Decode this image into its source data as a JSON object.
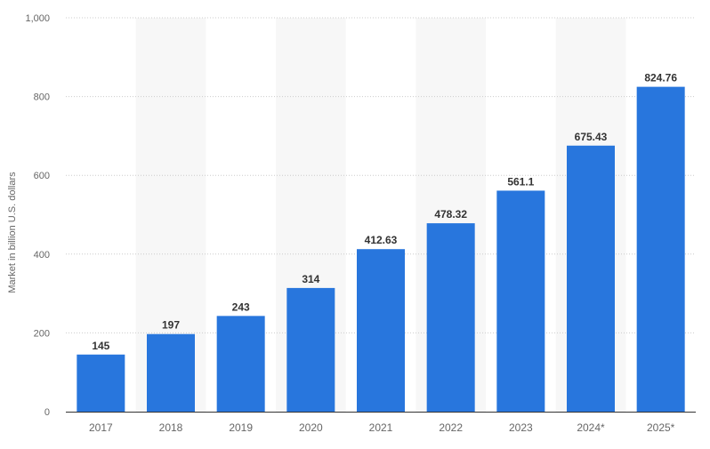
{
  "chart_data": {
    "type": "bar",
    "categories": [
      "2017",
      "2018",
      "2019",
      "2020",
      "2021",
      "2022",
      "2023",
      "2024*",
      "2025*"
    ],
    "series": [
      {
        "values": [
          145,
          197,
          243,
          314,
          412.63,
          478.32,
          561.1,
          675.43,
          824.76
        ],
        "value_labels": [
          "145",
          "197",
          "243",
          "314",
          "412.63",
          "478.32",
          "561.1",
          "675.43",
          "824.76"
        ]
      }
    ],
    "title": "",
    "xlabel": "",
    "ylabel": "Market in billion U.S. dollars",
    "ylim": [
      0,
      1000
    ],
    "yticks": [
      0,
      200,
      400,
      600,
      800,
      1000
    ],
    "ytick_labels": [
      "0",
      "200",
      "400",
      "600",
      "800",
      "1,000"
    ],
    "grid": true,
    "legend": "none",
    "colors": {
      "bar": "#2876dd",
      "band": "#f7f7f7",
      "grid": "#cccccc",
      "axis": "#333333"
    }
  }
}
